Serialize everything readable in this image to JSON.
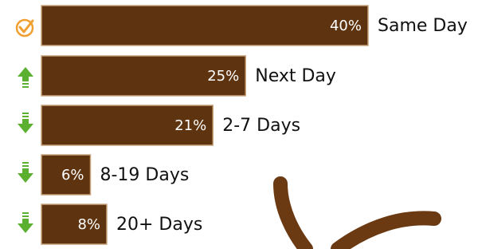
{
  "chart_data": {
    "type": "bar",
    "categories": [
      "Same Day",
      "Next Day",
      "2-7 Days",
      "8-19 Days",
      "20+ Days"
    ],
    "values": [
      40,
      25,
      21,
      6,
      8
    ],
    "value_labels": [
      "40%",
      "25%",
      "21%",
      "6%",
      "8%"
    ],
    "color": "#5e3410"
  }
}
